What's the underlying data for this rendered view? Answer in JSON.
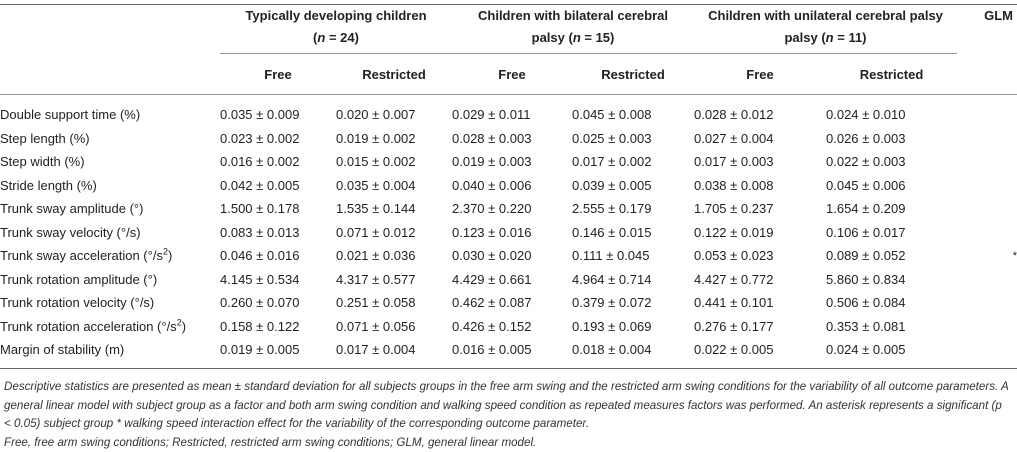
{
  "groups": {
    "td_line1": "Typically developing children",
    "td_line2_prefix": "(",
    "td_n": "n",
    "td_line2_suffix": " = 24)",
    "bcp_line1": "Children with bilateral cerebral",
    "bcp_line2_prefix": "palsy (",
    "bcp_n": "n",
    "bcp_line2_suffix": " = 15)",
    "ucp_line1": "Children with unilateral cerebral palsy",
    "ucp_line2_prefix": "palsy (",
    "ucp_n": "n",
    "ucp_line2_suffix": " = 11)",
    "glm": "GLM"
  },
  "subheaders": [
    "Free",
    "Restricted",
    "Free",
    "Restricted",
    "Free",
    "Restricted"
  ],
  "rows": [
    {
      "param": "Double support time (%)",
      "sup": "",
      "param_suffix": "",
      "values": [
        "0.035 ± 0.009",
        "0.020 ± 0.007",
        "0.029 ± 0.011",
        "0.045 ± 0.008",
        "0.028 ± 0.012",
        "0.024 ± 0.010"
      ],
      "glm": ""
    },
    {
      "param": "Step length (%)",
      "sup": "",
      "param_suffix": "",
      "values": [
        "0.023 ± 0.002",
        "0.019 ± 0.002",
        "0.028 ± 0.003",
        "0.025 ± 0.003",
        "0.027 ± 0.004",
        "0.026 ± 0.003"
      ],
      "glm": ""
    },
    {
      "param": "Step width (%)",
      "sup": "",
      "param_suffix": "",
      "values": [
        "0.016 ± 0.002",
        "0.015 ± 0.002",
        "0.019 ± 0.003",
        "0.017 ± 0.002",
        "0.017 ± 0.003",
        "0.022 ± 0.003"
      ],
      "glm": ""
    },
    {
      "param": "Stride length (%)",
      "sup": "",
      "param_suffix": "",
      "values": [
        "0.042 ± 0.005",
        "0.035 ± 0.004",
        "0.040 ± 0.006",
        "0.039 ± 0.005",
        "0.038 ± 0.008",
        "0.045 ± 0.006"
      ],
      "glm": ""
    },
    {
      "param": "Trunk sway amplitude (°)",
      "sup": "",
      "param_suffix": "",
      "values": [
        "1.500 ± 0.178",
        "1.535 ± 0.144",
        "2.370 ± 0.220",
        "2.555 ± 0.179",
        "1.705 ± 0.237",
        "1.654 ± 0.209"
      ],
      "glm": ""
    },
    {
      "param": "Trunk sway velocity (°/s)",
      "sup": "",
      "param_suffix": "",
      "values": [
        "0.083 ± 0.013",
        "0.071 ± 0.012",
        "0.123 ± 0.016",
        "0.146 ± 0.015",
        "0.122 ± 0.019",
        "0.106 ± 0.017"
      ],
      "glm": ""
    },
    {
      "param": "Trunk sway acceleration (°/s",
      "sup": "2",
      "param_suffix": ")",
      "values": [
        "0.046 ± 0.016",
        "0.021 ± 0.036",
        "0.030 ± 0.020",
        "0.111 ± 0.045",
        "0.053 ± 0.023",
        "0.089 ± 0.052"
      ],
      "glm": "*"
    },
    {
      "param": "Trunk rotation amplitude (°)",
      "sup": "",
      "param_suffix": "",
      "values": [
        "4.145 ± 0.534",
        "4.317 ± 0.577",
        "4.429 ± 0.661",
        "4.964 ± 0.714",
        "4.427 ± 0.772",
        "5.860 ± 0.834"
      ],
      "glm": ""
    },
    {
      "param": "Trunk rotation velocity (°/s)",
      "sup": "",
      "param_suffix": "",
      "values": [
        "0.260 ± 0.070",
        "0.251 ± 0.058",
        "0.462 ± 0.087",
        "0.379 ± 0.072",
        "0.441 ± 0.101",
        "0.506 ± 0.084"
      ],
      "glm": ""
    },
    {
      "param": "Trunk rotation acceleration (°/s",
      "sup": "2",
      "param_suffix": ")",
      "values": [
        "0.158 ± 0.122",
        "0.071 ± 0.056",
        "0.426 ± 0.152",
        "0.193 ± 0.069",
        "0.276 ± 0.177",
        "0.353 ± 0.081"
      ],
      "glm": ""
    },
    {
      "param": "Margin of stability (m)",
      "sup": "",
      "param_suffix": "",
      "values": [
        "0.019 ± 0.005",
        "0.017 ± 0.004",
        "0.016 ± 0.005",
        "0.018 ± 0.004",
        "0.022 ± 0.005",
        "0.024 ± 0.005"
      ],
      "glm": ""
    }
  ],
  "footnote": {
    "line1": "Descriptive statistics are presented as mean ± standard deviation for all subjects groups in the free arm swing and the restricted arm swing conditions for the variability of all outcome parameters. A general linear model with subject group as a factor and both arm swing condition and walking speed condition as repeated measures factors was performed. An asterisk represents a significant (p < 0.05) subject group * walking speed interaction effect for the variability of the corresponding outcome parameter.",
    "line2": "Free, free arm swing conditions; Restricted, restricted arm swing conditions; GLM, general linear model."
  }
}
